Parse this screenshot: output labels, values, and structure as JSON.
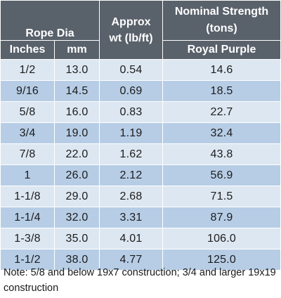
{
  "header": {
    "rope_dia": "Rope Dia",
    "approx_line1": "Approx",
    "approx_line2": "wt (lb/ft)",
    "nominal_line1": "Nominal Strength",
    "nominal_line2": "(tons)",
    "inches": "Inches",
    "mm": "mm",
    "royal_purple": "Royal Purple"
  },
  "rows": [
    {
      "inches": "1/2",
      "mm": "13.0",
      "wt": "0.54",
      "strength": "14.6"
    },
    {
      "inches": "9/16",
      "mm": "14.5",
      "wt": "0.69",
      "strength": "18.5"
    },
    {
      "inches": "5/8",
      "mm": "16.0",
      "wt": "0.83",
      "strength": "22.7"
    },
    {
      "inches": "3/4",
      "mm": "19.0",
      "wt": "1.19",
      "strength": "32.4"
    },
    {
      "inches": "7/8",
      "mm": "22.0",
      "wt": "1.62",
      "strength": "43.8"
    },
    {
      "inches": "1",
      "mm": "26.0",
      "wt": "2.12",
      "strength": "56.9"
    },
    {
      "inches": "1-1/8",
      "mm": "29.0",
      "wt": "2.68",
      "strength": "71.5"
    },
    {
      "inches": "1-1/4",
      "mm": "32.0",
      "wt": "3.31",
      "strength": "87.9"
    },
    {
      "inches": "1-3/8",
      "mm": "35.0",
      "wt": "4.01",
      "strength": "106.0"
    },
    {
      "inches": "1-1/2",
      "mm": "38.0",
      "wt": "4.77",
      "strength": "125.0"
    }
  ],
  "note": "Note:  5/8 and below 19x7 construction; 3/4 and larger 19x19 construction",
  "colors": {
    "header_bg": "#59616b",
    "row_light": "#dde7f1",
    "row_dark": "#b7cde6"
  }
}
